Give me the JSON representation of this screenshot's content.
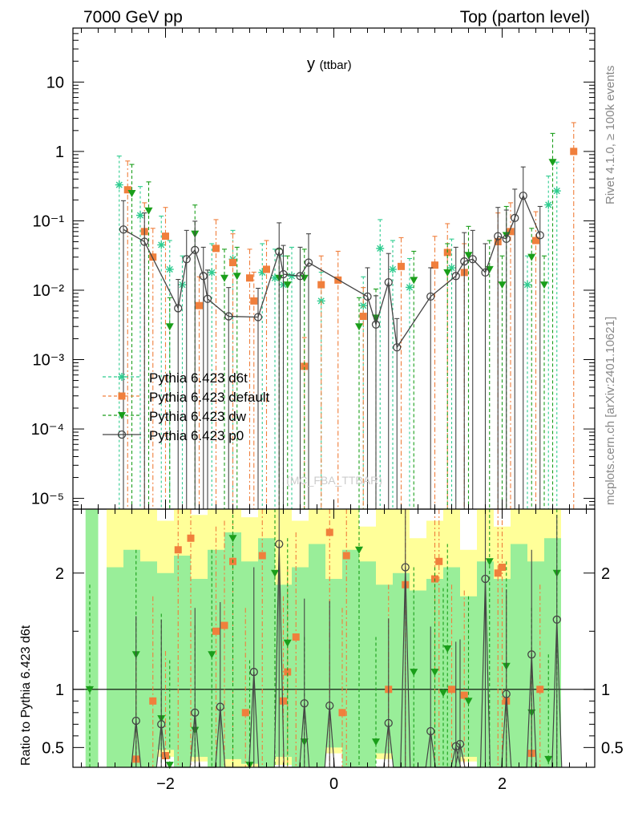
{
  "header": {
    "left": "7000 GeV pp",
    "right": "Top (parton level)"
  },
  "side_labels": {
    "rivet": "Rivet 4.1.0, ≥ 100k events",
    "mcplots": "mcplots.cern.ch [arXiv:2401.10621]"
  },
  "watermark": "(MC_FBA_TTBAR)",
  "colors": {
    "d6t": "#2ecc8f",
    "default": "#f07f3c",
    "dw": "#1a9e1a",
    "p0": "#444444",
    "band_yellow": "#ffff99",
    "band_green": "#99ee99"
  },
  "chart_data": [
    {
      "type": "line",
      "panel": "main",
      "title": "y",
      "title_sub": "(ttbar)",
      "yscale": "log",
      "xlim": [
        -3.1,
        3.1
      ],
      "ylim": [
        7e-06,
        60
      ],
      "y_tick_labels": [
        "10",
        "1",
        "10⁻¹",
        "10⁻²",
        "10⁻³",
        "10⁻⁴",
        "10⁻⁵"
      ],
      "legend": [
        {
          "name": "Pythia 6.423 d6t",
          "marker": "star",
          "color": "#2ecc8f"
        },
        {
          "name": "Pythia 6.423 default",
          "marker": "square",
          "color": "#f07f3c"
        },
        {
          "name": "Pythia 6.423 dw",
          "marker": "triangle",
          "color": "#1a9e1a"
        },
        {
          "name": "Pythia 6.423 p0",
          "marker": "circle",
          "color": "#444444"
        }
      ],
      "series": [
        {
          "name": "Pythia 6.423 d6t",
          "x": [
            -2.55,
            -2.3,
            -2.05,
            -1.95,
            -1.8,
            -1.45,
            -1.2,
            -0.85,
            -0.7,
            -0.6,
            -0.5,
            -0.15,
            0.35,
            0.55,
            0.7,
            0.9,
            1.4,
            2.3,
            2.55,
            2.65
          ],
          "y": [
            0.33,
            0.12,
            0.045,
            0.02,
            0.012,
            0.018,
            0.028,
            0.018,
            0.015,
            0.012,
            0.016,
            0.007,
            0.006,
            0.04,
            0.02,
            0.011,
            0.021,
            0.012,
            0.17,
            0.27
          ]
        },
        {
          "name": "Pythia 6.423 default",
          "x": [
            -2.45,
            -2.25,
            -2.15,
            -2.0,
            -1.6,
            -1.4,
            -1.2,
            -1.0,
            -0.95,
            -0.8,
            -0.35,
            -0.15,
            0.05,
            0.35,
            0.8,
            1.2,
            1.35,
            1.55,
            1.95,
            2.1,
            2.4,
            2.85
          ],
          "y": [
            0.28,
            0.07,
            0.03,
            0.06,
            0.006,
            0.04,
            0.025,
            0.015,
            0.007,
            0.02,
            0.0008,
            0.012,
            0.014,
            0.0042,
            0.022,
            0.023,
            0.035,
            0.018,
            0.05,
            0.07,
            0.052,
            1.0
          ]
        },
        {
          "name": "Pythia 6.423 dw",
          "x": [
            -2.4,
            -2.2,
            -1.95,
            -1.65,
            -1.3,
            -1.15,
            -0.65,
            -0.55,
            -0.35,
            0.3,
            0.5,
            0.95,
            1.35,
            1.6,
            1.85,
            2.0,
            2.05,
            2.35,
            2.5,
            2.6
          ],
          "y": [
            0.25,
            0.14,
            0.003,
            0.065,
            0.015,
            0.016,
            0.015,
            0.012,
            0.015,
            0.003,
            0.004,
            0.014,
            0.018,
            0.032,
            0.02,
            0.012,
            0.062,
            0.03,
            0.012,
            0.7
          ]
        },
        {
          "name": "Pythia 6.423 p0",
          "x": [
            -2.5,
            -2.25,
            -1.85,
            -1.75,
            -1.65,
            -1.55,
            -1.5,
            -1.25,
            -0.9,
            -0.65,
            -0.6,
            -0.4,
            -0.3,
            0.4,
            0.5,
            0.65,
            0.75,
            1.15,
            1.45,
            1.55,
            1.65,
            1.8,
            1.95,
            2.05,
            2.15,
            2.25,
            2.45
          ],
          "y": [
            0.075,
            0.05,
            0.0055,
            0.028,
            0.038,
            0.016,
            0.0075,
            0.0042,
            0.0041,
            0.036,
            0.017,
            0.016,
            0.025,
            0.0081,
            0.0032,
            0.013,
            0.0015,
            0.0081,
            0.016,
            0.026,
            0.028,
            0.018,
            0.06,
            0.055,
            0.11,
            0.23,
            0.062
          ]
        }
      ]
    },
    {
      "type": "line",
      "panel": "ratio",
      "ylabel": "Ratio to Pythia 6.423 d6t",
      "xlim": [
        -3.1,
        3.1
      ],
      "ylim": [
        0.33,
        2.55
      ],
      "y_ticks": [
        0.5,
        1,
        2
      ],
      "y_tick_labels": [
        "0.5",
        "1",
        "2"
      ],
      "x_ticks": [
        -2,
        0,
        2
      ],
      "x_tick_labels": [
        "−2",
        "0",
        "2"
      ],
      "bands": {
        "bin_edges": [
          -2.7,
          -2.5,
          -2.3,
          -2.1,
          -1.9,
          -1.7,
          -1.5,
          -1.3,
          -1.1,
          -0.9,
          -0.7,
          -0.5,
          -0.3,
          -0.1,
          0.1,
          0.3,
          0.5,
          0.7,
          0.9,
          1.1,
          1.3,
          1.5,
          1.7,
          1.9,
          2.1,
          2.3,
          2.5,
          2.7
        ],
        "yellow_low": [
          0.33,
          0.33,
          0.33,
          0.42,
          0.33,
          0.38,
          0.33,
          0.33,
          0.33,
          0.33,
          0.35,
          0.33,
          0.33,
          0.45,
          0.33,
          0.33,
          0.4,
          0.33,
          0.33,
          0.33,
          0.33,
          0.38,
          0.33,
          0.33,
          0.33,
          0.33,
          0.33
        ],
        "yellow_high": [
          2.55,
          2.55,
          2.55,
          2.45,
          2.55,
          2.5,
          2.55,
          2.55,
          2.48,
          2.55,
          2.55,
          2.45,
          2.55,
          2.55,
          2.55,
          2.4,
          2.55,
          2.55,
          2.3,
          2.45,
          2.55,
          2.2,
          2.55,
          2.4,
          2.55,
          2.55,
          2.55
        ],
        "green_low": [
          0.33,
          0.33,
          0.33,
          0.48,
          0.33,
          0.42,
          0.33,
          0.4,
          0.36,
          0.33,
          0.42,
          0.33,
          0.33,
          0.5,
          0.33,
          0.33,
          0.45,
          0.33,
          0.33,
          0.33,
          0.33,
          0.42,
          0.33,
          0.33,
          0.33,
          0.33,
          0.33
        ],
        "green_high": [
          2.05,
          2.2,
          2.1,
          2.0,
          2.15,
          1.95,
          2.2,
          2.35,
          2.1,
          2.3,
          1.9,
          2.05,
          2.25,
          1.95,
          2.2,
          2.1,
          1.9,
          2.0,
          1.85,
          1.95,
          2.05,
          1.8,
          2.1,
          1.95,
          2.25,
          2.1,
          2.3
        ]
      },
      "series": [
        {
          "name": "Pythia 6.423 default",
          "x": [
            -2.35,
            -2.15,
            -2.0,
            -1.85,
            -1.7,
            -1.4,
            -1.3,
            -1.2,
            -1.05,
            -0.85,
            -0.6,
            -0.55,
            -0.45,
            -0.05,
            0.1,
            0.15,
            0.65,
            0.85,
            1.2,
            1.25,
            1.4,
            1.55,
            1.95,
            2.0,
            2.05,
            2.35,
            2.45
          ],
          "y": [
            0.4,
            0.9,
            0.43,
            2.2,
            2.3,
            1.5,
            1.55,
            2.1,
            0.8,
            2.15,
            0.9,
            1.15,
            1.45,
            2.35,
            0.8,
            2.15,
            1.0,
            1.9,
            1.95,
            2.1,
            1.0,
            0.95,
            2.0,
            2.05,
            0.9,
            0.45,
            1.0
          ]
        },
        {
          "name": "Pythia 6.423 dw",
          "x": [
            -2.9,
            -2.35,
            -2.05,
            -1.95,
            -1.65,
            -1.45,
            -1.2,
            -1.0,
            -0.7,
            -0.55,
            -0.35,
            0.3,
            0.5,
            0.95,
            1.2,
            1.3,
            1.35,
            1.6,
            1.85,
            2.05,
            2.35,
            2.55,
            2.65
          ],
          "y": [
            1.0,
            1.3,
            0.75,
            0.35,
            0.65,
            1.3,
            2.3,
            0.35,
            2.0,
            1.4,
            0.55,
            2.2,
            0.55,
            1.15,
            1.15,
            0.97,
            1.35,
            0.9,
            2.1,
            1.2,
            0.8,
            0.4,
            2.0
          ]
        },
        {
          "name": "Pythia 6.423 p0",
          "x": [
            -2.35,
            -2.05,
            -1.65,
            -1.35,
            -0.95,
            -0.65,
            -0.35,
            -0.05,
            0.65,
            0.85,
            1.15,
            1.45,
            1.5,
            1.8,
            2.05,
            2.35,
            2.65
          ],
          "y": [
            0.73,
            0.7,
            0.8,
            0.85,
            1.15,
            2.25,
            0.88,
            0.86,
            0.71,
            2.05,
            0.64,
            0.51,
            0.53,
            1.95,
            0.96,
            1.3,
            1.6
          ]
        }
      ]
    }
  ]
}
